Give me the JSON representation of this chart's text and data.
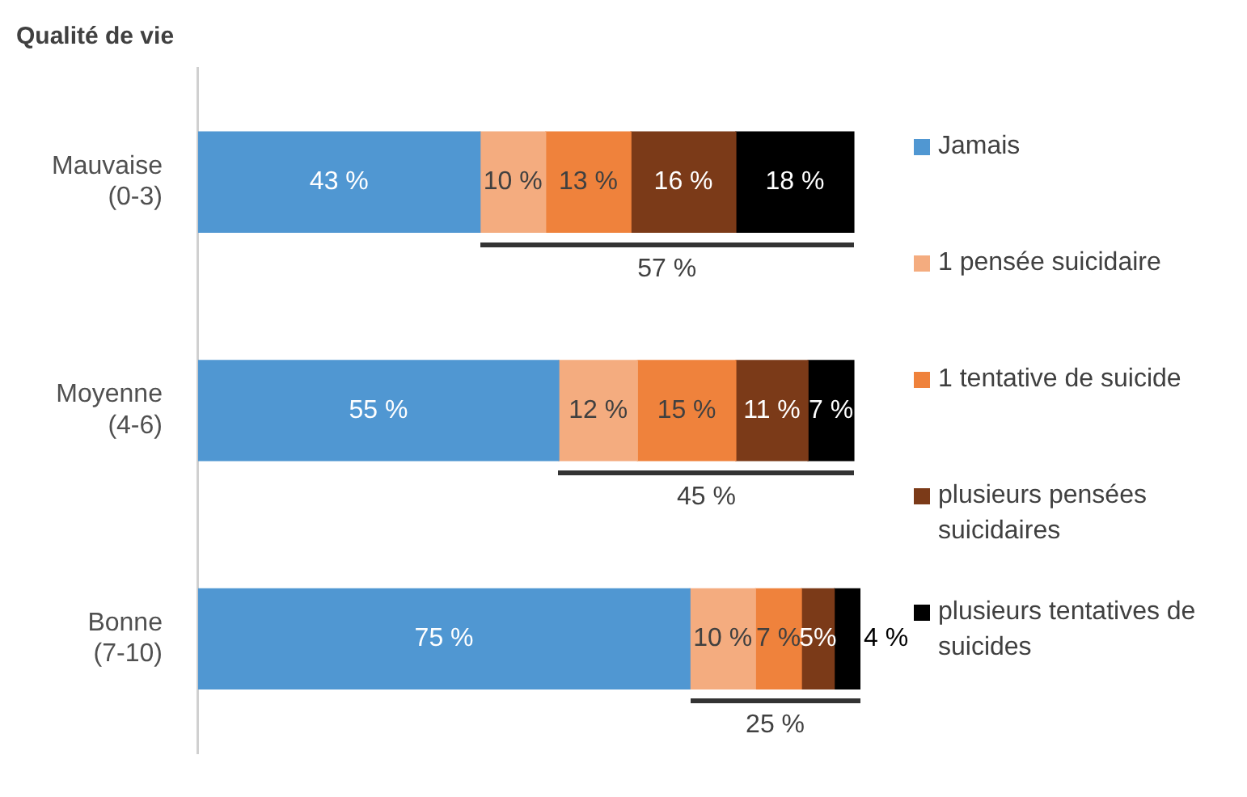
{
  "chart_data": {
    "type": "bar",
    "orientation": "horizontal",
    "stacked": true,
    "title": "Qualité de vie",
    "categories": [
      "Mauvaise (0-3)",
      "Moyenne (4-6)",
      "Bonne (7-10)"
    ],
    "series": [
      {
        "name": "Jamais",
        "color": "#5097d2",
        "values": [
          43,
          55,
          75
        ],
        "value_labels": [
          "43 %",
          "55 %",
          "75 %"
        ]
      },
      {
        "name": "1 pensée suicidaire",
        "color": "#f4ac7f",
        "values": [
          10,
          12,
          10
        ],
        "value_labels": [
          "10 %",
          "12 %",
          "10 %"
        ]
      },
      {
        "name": "1 tentative de suicide",
        "color": "#ef823c",
        "values": [
          13,
          15,
          7
        ],
        "value_labels": [
          "13 %",
          "15 %",
          "7 %"
        ]
      },
      {
        "name": "plusieurs pensées suicidaires",
        "color": "#7b3a18",
        "values": [
          16,
          11,
          5
        ],
        "value_labels": [
          "16 %",
          "11 %",
          "5%"
        ]
      },
      {
        "name": "plusieurs tentatives de suicides",
        "color": "#000000",
        "values": [
          18,
          7,
          4
        ],
        "value_labels": [
          "18 %",
          "7 %",
          "4 %"
        ]
      }
    ],
    "annotations": [
      "57 %",
      "45 %",
      "25 %"
    ],
    "legend": "right"
  }
}
